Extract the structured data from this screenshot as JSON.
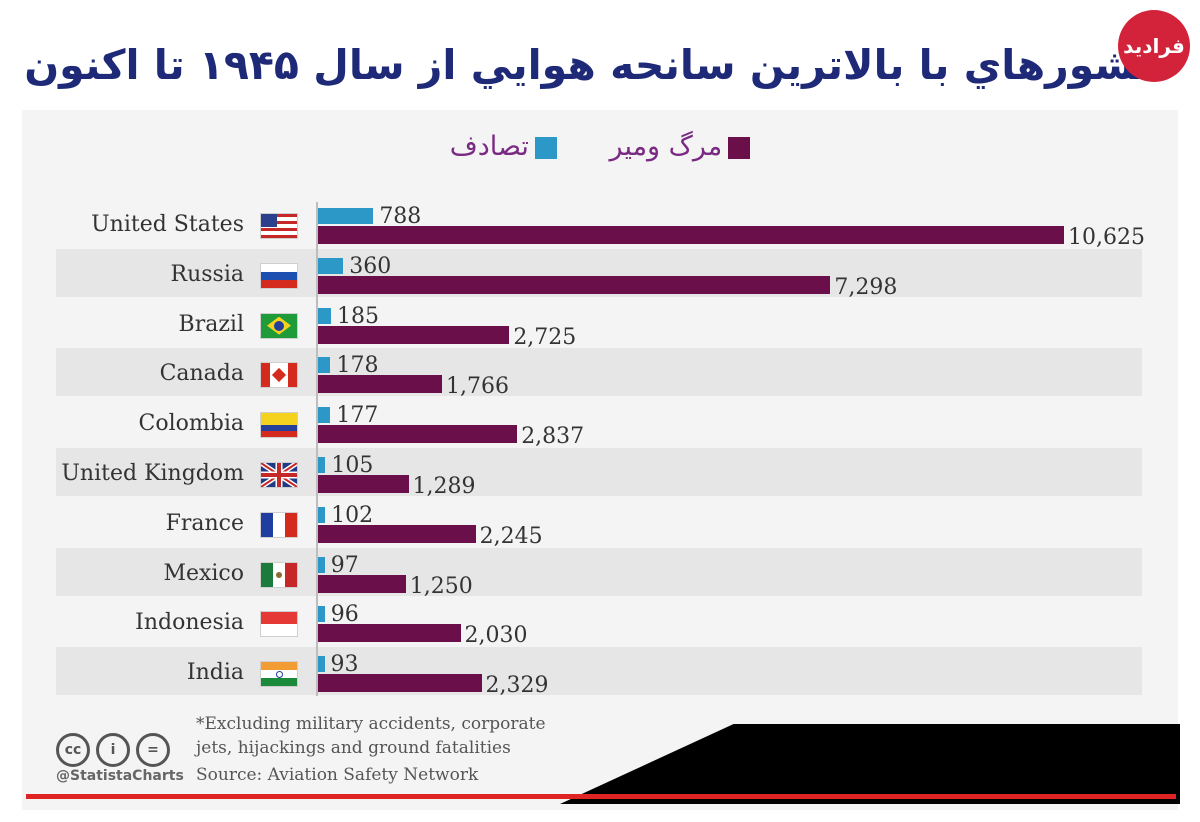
{
  "title": "کشورهاي با بالاترين سانحه هوايي از سال ۱۹۴۵ تا اکنون",
  "watermark": "فرادید",
  "legend": {
    "accidents_label": "تصادف",
    "deaths_label": "مرگ ومير",
    "accidents_color": "#2c98c8",
    "deaths_color": "#6b0f4a"
  },
  "chart_data": {
    "type": "bar",
    "orientation": "horizontal",
    "categories": [
      "United States",
      "Russia",
      "Brazil",
      "Canada",
      "Colombia",
      "United Kingdom",
      "France",
      "Mexico",
      "Indonesia",
      "India"
    ],
    "series": [
      {
        "name": "تصادف",
        "values": [
          788,
          360,
          185,
          178,
          177,
          105,
          102,
          97,
          96,
          93
        ]
      },
      {
        "name": "مرگ ومير",
        "values": [
          10625,
          7298,
          2725,
          1766,
          2837,
          1289,
          2245,
          1250,
          2030,
          2329
        ]
      }
    ],
    "value_labels": {
      "accidents": [
        "788",
        "360",
        "185",
        "178",
        "177",
        "105",
        "102",
        "97",
        "96",
        "93"
      ],
      "deaths": [
        "10,625",
        "7,298",
        "2,725",
        "1,766",
        "2,837",
        "1,289",
        "2,245",
        "1,250",
        "2,030",
        "2,329"
      ]
    },
    "flags": [
      "us-flag",
      "russia-flag",
      "brazil-flag",
      "canada-flag",
      "colombia-flag",
      "uk-flag",
      "france-flag",
      "mexico-flag",
      "indonesia-flag",
      "india-flag"
    ],
    "legend_position": "top",
    "grid": false
  },
  "footer": {
    "note_line1": "*Excluding military accidents, corporate",
    "note_line2": "jets, hijackings and ground fatalities",
    "source": "Source: Aviation Safety Network",
    "brand": "@StatistaCharts",
    "cc_icons": [
      "cc-icon",
      "by-icon",
      "nd-icon"
    ]
  }
}
